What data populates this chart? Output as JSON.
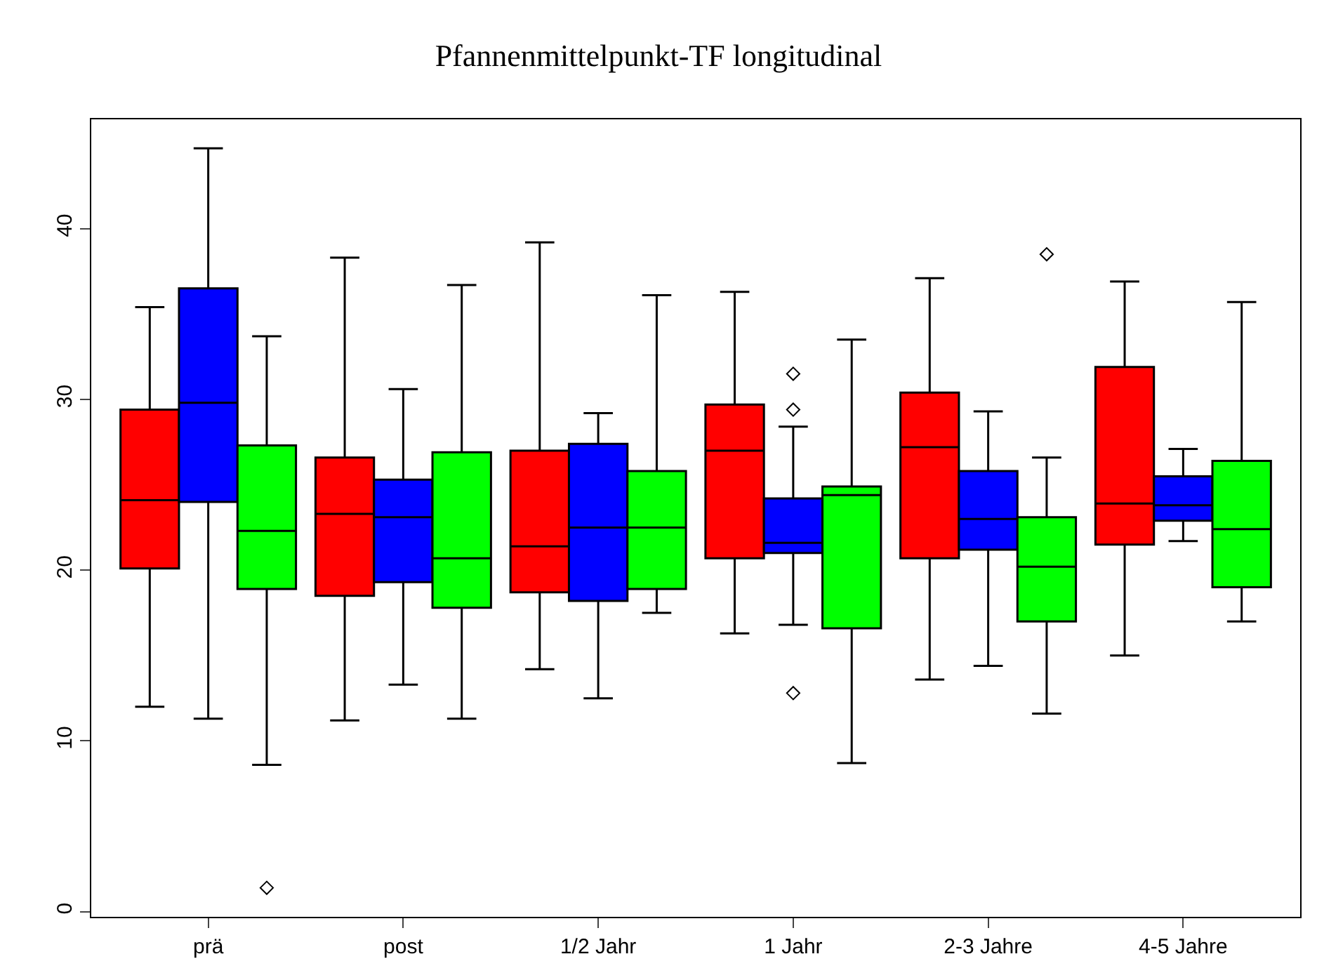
{
  "chart_data": {
    "type": "box",
    "title": "Pfannenmittelpunkt-TF longitudinal",
    "categories": [
      "prä",
      "post",
      "1/2 Jahr",
      "1 Jahr",
      "2-3 Jahre",
      "4-5 Jahre"
    ],
    "ylim": [
      -0.3,
      46.4
    ],
    "yticks": [
      0,
      10,
      20,
      30,
      40
    ],
    "series": [
      {
        "color": "#ff0000",
        "boxes": [
          {
            "low": 12.0,
            "q1": 20.1,
            "median": 24.1,
            "q3": 29.4,
            "high": 35.4
          },
          {
            "low": 11.2,
            "q1": 18.5,
            "median": 23.3,
            "q3": 26.6,
            "high": 38.3
          },
          {
            "low": 14.2,
            "q1": 18.7,
            "median": 21.4,
            "q3": 27.0,
            "high": 39.2
          },
          {
            "low": 16.3,
            "q1": 20.7,
            "median": 27.0,
            "q3": 29.7,
            "high": 36.3
          },
          {
            "low": 13.6,
            "q1": 20.7,
            "median": 27.2,
            "q3": 30.4,
            "high": 37.1
          },
          {
            "low": 15.0,
            "q1": 21.5,
            "median": 23.9,
            "q3": 31.9,
            "high": 36.9
          }
        ]
      },
      {
        "color": "#0000ff",
        "boxes": [
          {
            "low": 11.3,
            "q1": 24.0,
            "median": 29.8,
            "q3": 36.5,
            "high": 44.7
          },
          {
            "low": 13.3,
            "q1": 19.3,
            "median": 23.1,
            "q3": 25.3,
            "high": 30.6
          },
          {
            "low": 12.5,
            "q1": 18.2,
            "median": 22.5,
            "q3": 27.4,
            "high": 29.2
          },
          {
            "low": 16.8,
            "q1": 21.0,
            "median": 21.6,
            "q3": 24.2,
            "high": 28.4,
            "outliers": [
              31.5,
              29.4,
              12.8
            ]
          },
          {
            "low": 14.4,
            "q1": 21.2,
            "median": 23.0,
            "q3": 25.8,
            "high": 29.3
          },
          {
            "low": 21.7,
            "q1": 22.9,
            "median": 23.8,
            "q3": 25.5,
            "high": 27.1
          }
        ]
      },
      {
        "color": "#00ff00",
        "boxes": [
          {
            "low": 8.6,
            "q1": 18.9,
            "median": 22.3,
            "q3": 27.3,
            "high": 33.7,
            "outliers": [
              1.4
            ]
          },
          {
            "low": 11.3,
            "q1": 17.8,
            "median": 20.7,
            "q3": 26.9,
            "high": 36.7
          },
          {
            "low": 17.5,
            "q1": 18.9,
            "median": 22.5,
            "q3": 25.8,
            "high": 36.1
          },
          {
            "low": 8.7,
            "q1": 16.6,
            "median": 24.4,
            "q3": 24.9,
            "high": 33.5
          },
          {
            "low": 11.6,
            "q1": 17.0,
            "median": 20.2,
            "q3": 23.1,
            "high": 26.6,
            "outliers": [
              38.5
            ]
          },
          {
            "low": 17.0,
            "q1": 19.0,
            "median": 22.4,
            "q3": 26.4,
            "high": 35.7
          }
        ]
      }
    ]
  }
}
